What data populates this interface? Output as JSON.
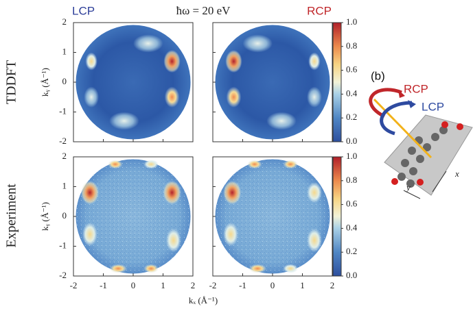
{
  "figure": {
    "title": "ħω = 20 eV",
    "columns": [
      "LCP",
      "RCP"
    ],
    "rows": [
      "TDDFT",
      "Experiment"
    ],
    "x_label": "kₓ (Å⁻¹)",
    "y_label": "kᵧ (Å⁻¹)",
    "xlim": [
      -2,
      2
    ],
    "ylim": [
      -2,
      2
    ],
    "xticks": [
      -2,
      -1,
      0,
      1,
      2
    ],
    "yticks": [
      -2,
      -1,
      0,
      1,
      2
    ],
    "colorbar": {
      "lim": [
        0,
        1
      ],
      "ticks": [
        {
          "value": 0,
          "label": "0.0"
        },
        {
          "value": 0.2,
          "label": "0.2"
        },
        {
          "value": 0.4,
          "label": "0.4"
        },
        {
          "value": 0.6,
          "label": "0.6"
        },
        {
          "value": 0.8,
          "label": "0.8"
        },
        {
          "value": 1,
          "label": "1.0"
        }
      ]
    },
    "inset": {
      "label": "(b)",
      "rcp": "RCP",
      "lcp": "LCP",
      "x_axis": "x",
      "y_axis": "y"
    }
  }
}
